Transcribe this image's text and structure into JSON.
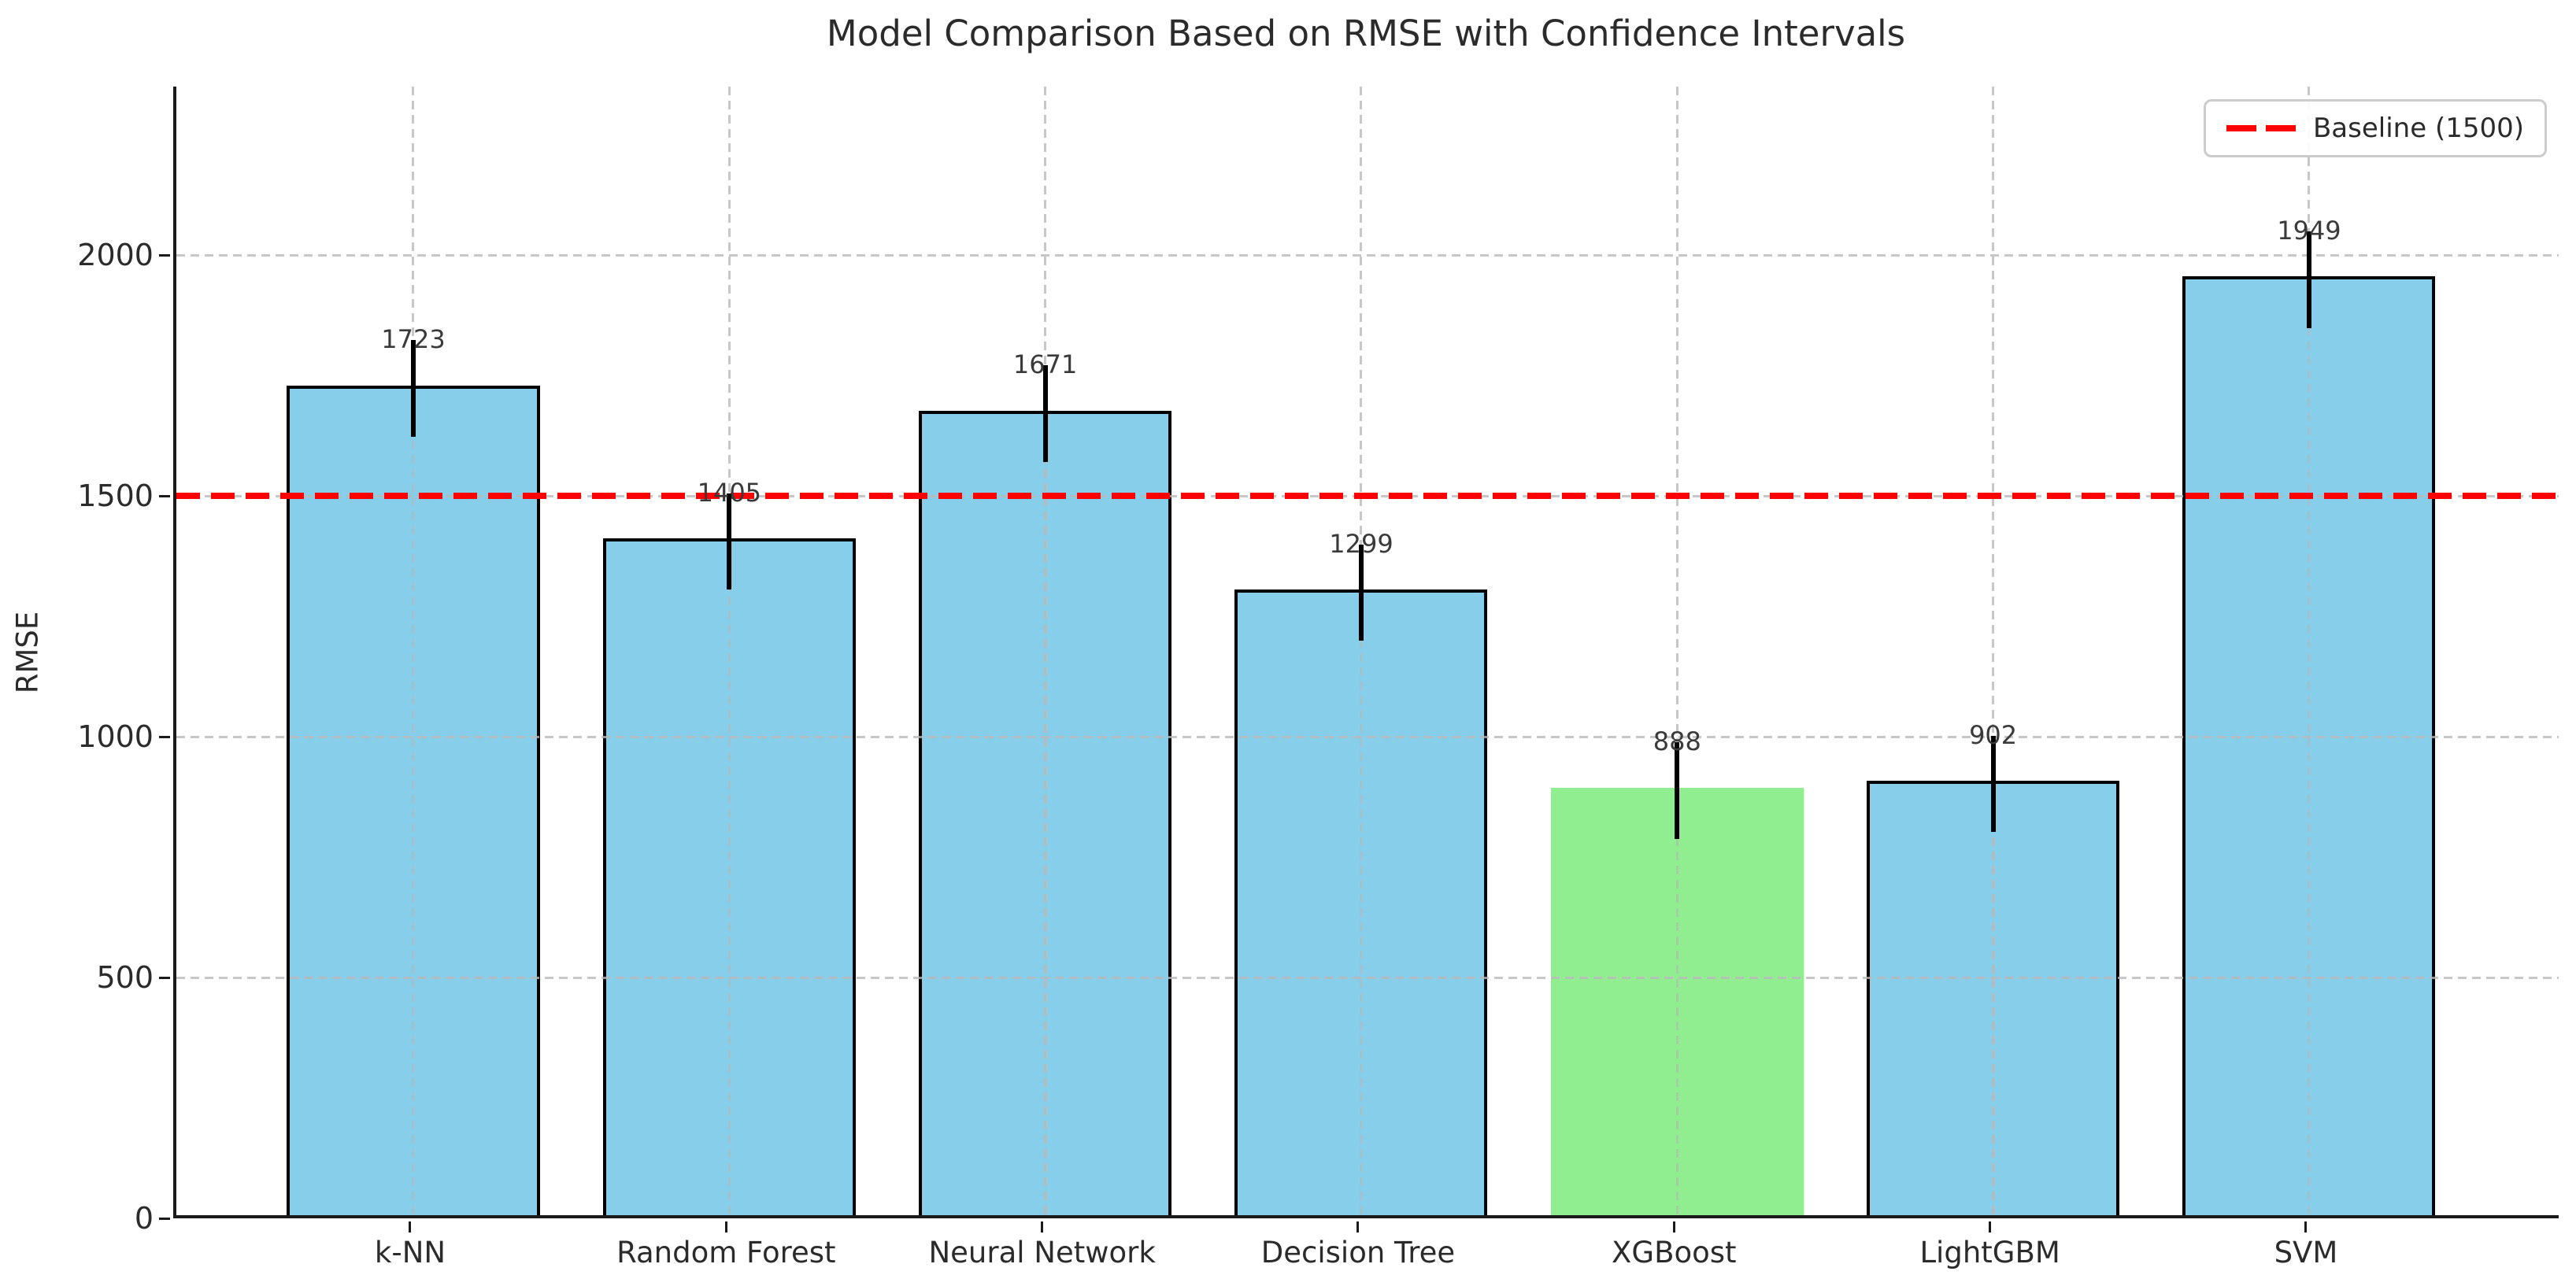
{
  "chart_data": {
    "type": "bar",
    "title": "Model Comparison Based on RMSE with Confidence Intervals",
    "xlabel": "",
    "ylabel": "RMSE",
    "categories": [
      "k-NN",
      "Random Forest",
      "Neural Network",
      "Decision Tree",
      "XGBoost",
      "LightGBM",
      "SVM"
    ],
    "values": [
      1723,
      1405,
      1671,
      1299,
      888,
      902,
      1949
    ],
    "errors": [
      100,
      100,
      100,
      100,
      100,
      100,
      100
    ],
    "highlight_index": 4,
    "baseline": {
      "value": 1500,
      "legend_label": "Baseline (1500)"
    },
    "yticks": [
      0,
      500,
      1000,
      1500,
      2000
    ],
    "ylim": [
      0,
      2350
    ],
    "grid": "dashed",
    "legend_position": "upper right"
  },
  "colors": {
    "bar": "#87CEEB",
    "highlight_bar": "#90EE90",
    "bar_edge": "#000000",
    "baseline": "#FF0000",
    "error_bar": "#000000",
    "grid": "#b9b9b9",
    "spine": "#1a1a1a",
    "text": "#2b2b2b"
  }
}
